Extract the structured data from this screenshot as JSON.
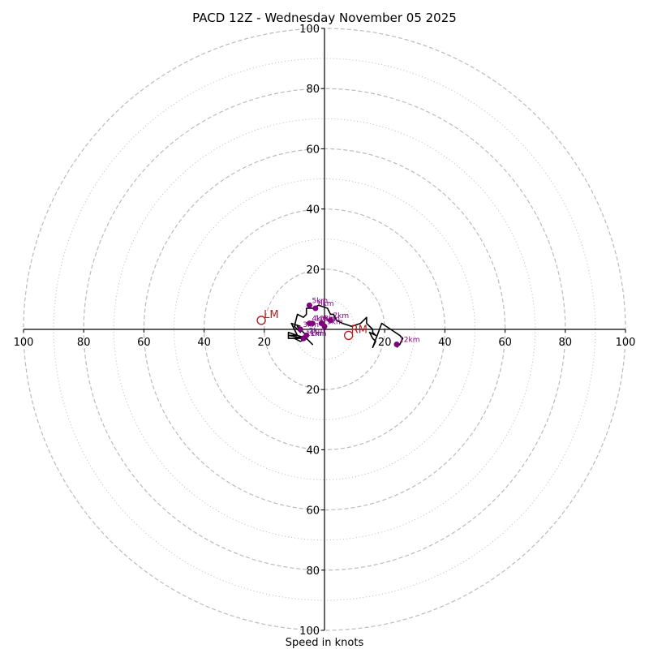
{
  "chart_data": {
    "type": "hodograph",
    "title": "PACD 12Z - Wednesday November 05 2025",
    "xlabel": "Speed in knots",
    "axis_range_knots": [
      -100,
      100
    ],
    "rings_major_knots": [
      20,
      40,
      60,
      80,
      100
    ],
    "rings_minor_knots": [
      10,
      30,
      50,
      70,
      90
    ],
    "ticks": {
      "left": [
        "100",
        "80",
        "60",
        "40",
        "20"
      ],
      "right": [
        "20",
        "40",
        "60",
        "80",
        "100"
      ],
      "top": [
        "20",
        "40",
        "60",
        "80",
        "100"
      ],
      "bottom": [
        "20",
        "40",
        "60",
        "80",
        "100"
      ]
    },
    "grid": true,
    "colors": {
      "hodograph_line": "#000000",
      "height_markers": "#800080",
      "storm_motion": "#b22222",
      "grid": "#bbbbbb",
      "axes": "#000000"
    },
    "hodograph_trace": [
      [
        -8,
        1
      ],
      [
        -11,
        2
      ],
      [
        -9,
        -2
      ],
      [
        -12,
        -2
      ],
      [
        -7,
        -3
      ],
      [
        -10,
        -3
      ],
      [
        -12,
        -3
      ],
      [
        -12,
        -1
      ],
      [
        -6,
        -3
      ],
      [
        -4,
        -5
      ],
      [
        -6,
        -3
      ],
      [
        -8,
        -4
      ],
      [
        -10,
        -3
      ],
      [
        -6,
        -2
      ],
      [
        -9,
        1
      ],
      [
        -8,
        -1
      ],
      [
        -10,
        1
      ],
      [
        -9,
        5
      ],
      [
        -7,
        4
      ],
      [
        -6,
        5
      ],
      [
        -6,
        7
      ],
      [
        -4,
        7
      ],
      [
        -2,
        8
      ],
      [
        1,
        7
      ],
      [
        2,
        5
      ],
      [
        3,
        5
      ],
      [
        4,
        3
      ],
      [
        6,
        2
      ],
      [
        9,
        1
      ],
      [
        12,
        2
      ],
      [
        13,
        3
      ],
      [
        14,
        4
      ],
      [
        14,
        2
      ],
      [
        16,
        0
      ],
      [
        16,
        -1
      ],
      [
        17,
        -2
      ],
      [
        15,
        -1
      ],
      [
        16,
        -3
      ],
      [
        17,
        -4
      ],
      [
        16,
        -6
      ],
      [
        19,
        2
      ],
      [
        22,
        0
      ],
      [
        25,
        -2
      ],
      [
        26,
        -3
      ],
      [
        25,
        -5
      ],
      [
        24,
        -6
      ]
    ],
    "height_markers": [
      {
        "label": "1km",
        "u": -7,
        "v": -3
      },
      {
        "label": "2km",
        "u": -6,
        "v": -2
      },
      {
        "label": "3km",
        "u": -8,
        "v": 0
      },
      {
        "label": "4km",
        "u": -5,
        "v": 2
      },
      {
        "label": "5km",
        "u": -5,
        "v": 8
      },
      {
        "label": "6km",
        "u": -3,
        "v": 7
      },
      {
        "label": "7km",
        "u": 2,
        "v": 3
      },
      {
        "label": "8km",
        "u": -1,
        "v": 2
      },
      {
        "label": "9km",
        "u": 0,
        "v": 1
      },
      {
        "label": "10km",
        "u": -4,
        "v": 2
      },
      {
        "label": "11km",
        "u": -7,
        "v": -3
      },
      {
        "label": "12km",
        "u": 24,
        "v": -5
      }
    ],
    "storm_motion": [
      {
        "label": "LM",
        "u": -21,
        "v": 3
      },
      {
        "label": "RM",
        "u": 8,
        "v": -2
      }
    ]
  }
}
